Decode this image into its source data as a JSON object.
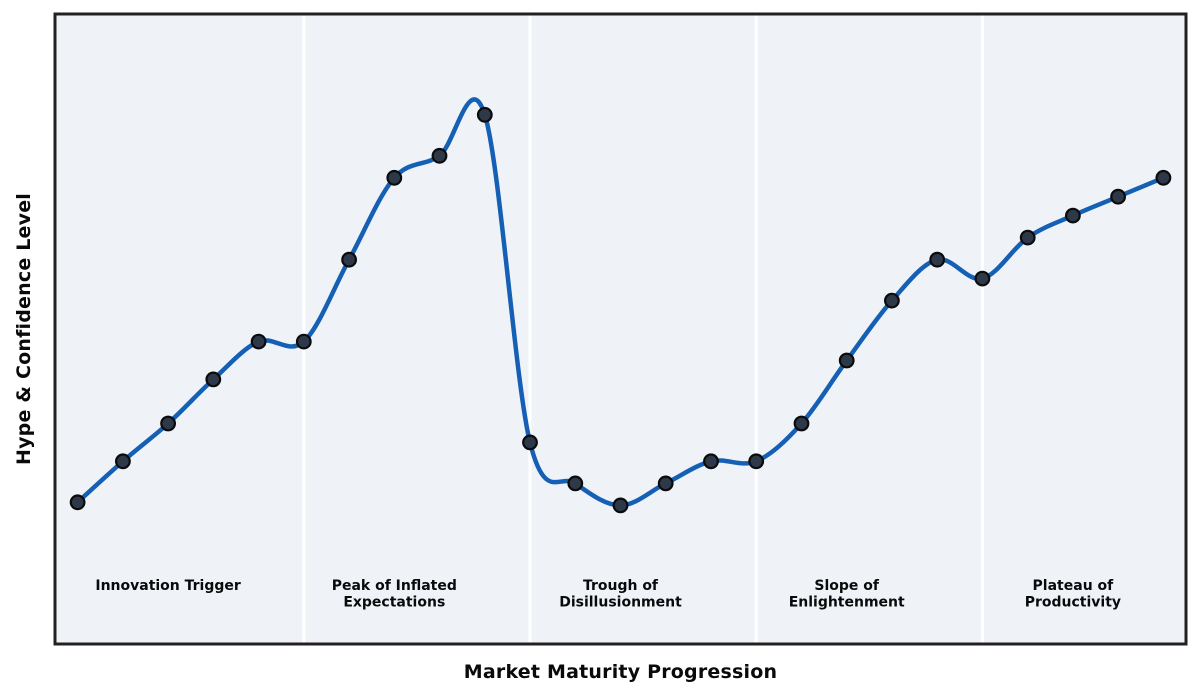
{
  "figure": {
    "xlabel": "Market Maturity Progression",
    "ylabel": "Hype & Confidence Level"
  },
  "colors": {
    "page_bg": "#ffffff",
    "plot_bg": "#eff3f8",
    "frame": "#212121",
    "divider": "#ffffff",
    "line": "#1560b4",
    "marker_fill": "#2d3848",
    "marker_stroke": "#0b0b0b",
    "label_text": "#0a0a0a"
  },
  "chart_data": {
    "type": "line",
    "title": "",
    "xlabel": "Market Maturity Progression",
    "ylabel": "Hype & Confidence Level",
    "smooth": true,
    "markers": true,
    "grid": false,
    "legend": false,
    "x": [
      1,
      2,
      3,
      4,
      5,
      6,
      7,
      8,
      9,
      10,
      11,
      12,
      13,
      14,
      15,
      16,
      17,
      18,
      19,
      20,
      21,
      22,
      23,
      24,
      25
    ],
    "values": [
      22.5,
      29,
      35,
      42,
      48,
      48,
      61,
      74,
      77.5,
      84,
      32,
      25.5,
      22,
      25.5,
      29,
      29,
      35,
      45,
      54.5,
      61,
      58,
      64.5,
      68,
      71,
      74
    ],
    "xlim": [
      0.5,
      25.5
    ],
    "ylim": [
      0,
      100
    ],
    "phase_dividers_x": [
      6,
      11,
      16,
      21
    ],
    "phases": [
      {
        "label": "Innovation Trigger",
        "lines": [
          "Innovation Trigger"
        ],
        "center_x": 3
      },
      {
        "label": "Peak of Inflated Expectations",
        "lines": [
          "Peak of Inflated",
          "Expectations"
        ],
        "center_x": 8
      },
      {
        "label": "Trough of Disillusionment",
        "lines": [
          "Trough of",
          "Disillusionment"
        ],
        "center_x": 13
      },
      {
        "label": "Slope of Enlightenment",
        "lines": [
          "Slope of",
          "Enlightenment"
        ],
        "center_x": 18
      },
      {
        "label": "Plateau of Productivity",
        "lines": [
          "Plateau of",
          "Productivity"
        ],
        "center_x": 23
      }
    ]
  }
}
